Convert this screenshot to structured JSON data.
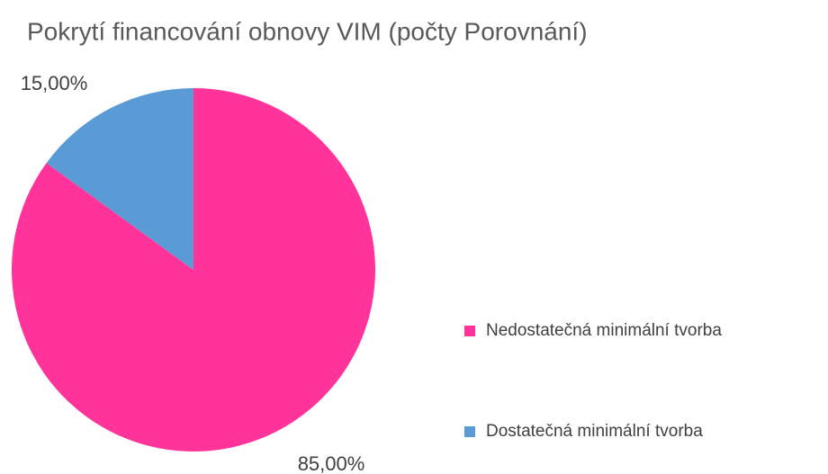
{
  "chart_data": {
    "type": "pie",
    "title": "Pokrytí financování obnovy VIM (počty Porovnání)",
    "categories": [
      "Nedostatečná minimální tvorba",
      "Dostatečná minimální tvorba"
    ],
    "values": [
      85,
      15
    ],
    "value_labels": [
      "85,00%",
      "15,00%"
    ],
    "colors": [
      "#ff3399",
      "#5b9bd5"
    ],
    "legend": "right"
  }
}
